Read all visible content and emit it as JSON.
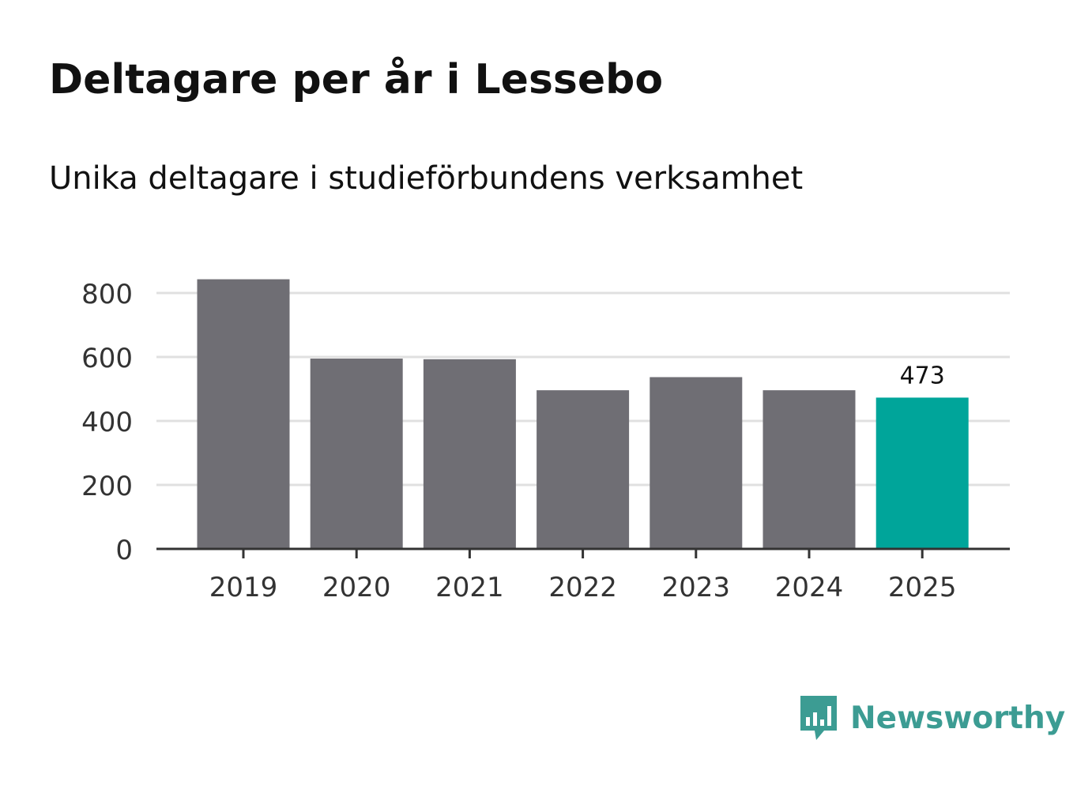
{
  "header": {
    "title": "Deltagare per år i Lessebo",
    "subtitle": "Unika deltagare i studieförbundens verksamhet"
  },
  "chart_data": {
    "type": "bar",
    "title": "Deltagare per år i Lessebo",
    "subtitle": "Unika deltagare i studieförbundens verksamhet",
    "categories": [
      "2019",
      "2020",
      "2021",
      "2022",
      "2023",
      "2024",
      "2025"
    ],
    "values": [
      843,
      595,
      593,
      496,
      537,
      496,
      473
    ],
    "xlabel": "",
    "ylabel": "",
    "ylim": [
      0,
      800
    ],
    "yticks": [
      "0",
      "200",
      "400",
      "600",
      "800"
    ],
    "grid": true,
    "highlight_index": 6,
    "data_labels": [
      {
        "index": 6,
        "text": "473"
      }
    ],
    "colors": {
      "bar": "#6f6e74",
      "highlight": "#00a59a",
      "grid": "#e0e0e0",
      "axis": "#333333",
      "tick_text": "#333333"
    }
  },
  "brand": {
    "name": "Newsworthy",
    "icon": "newsworthy-logo-icon",
    "color": "#3c9c93"
  }
}
